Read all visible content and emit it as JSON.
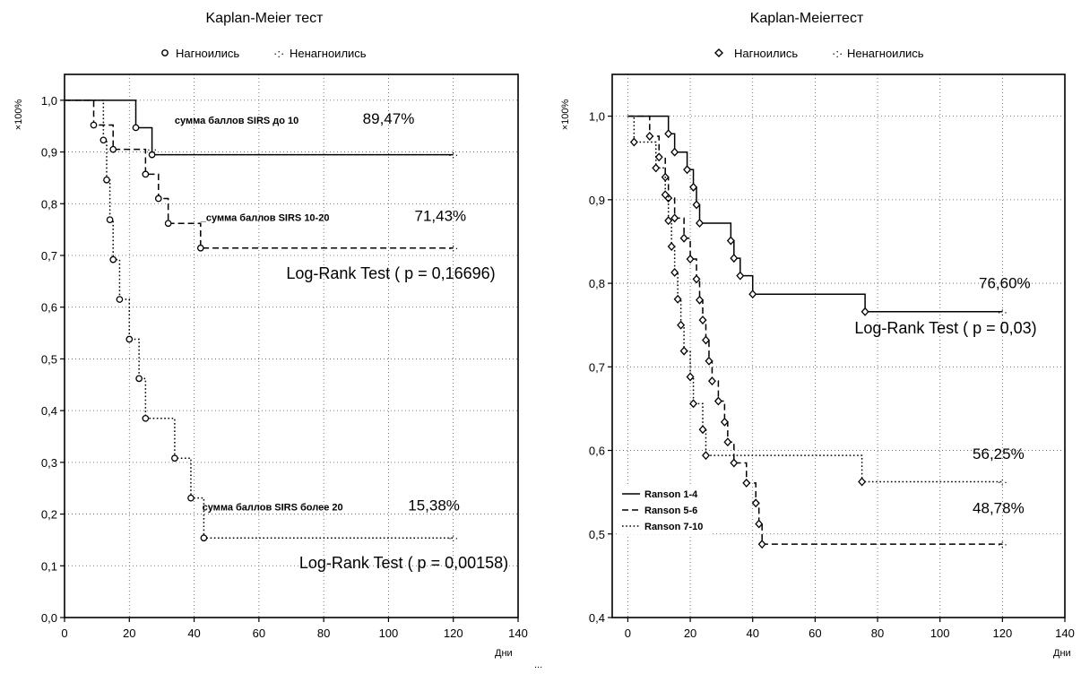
{
  "chart_data": [
    {
      "type": "line",
      "title": "Kaplan-Meier тест",
      "legend": [
        "Нагноились",
        "Ненагноились"
      ],
      "ylabel": "×100%",
      "xlabel": "",
      "bottom_note": "Дни",
      "bottom_mark": "...",
      "xlim": [
        0,
        140
      ],
      "ylim": [
        0,
        1.05
      ],
      "xticks": [
        0,
        20,
        40,
        60,
        80,
        100,
        120,
        140
      ],
      "yticks": [
        0.0,
        0.1,
        0.2,
        0.3,
        0.4,
        0.5,
        0.6,
        0.7,
        0.8,
        0.9,
        1.0
      ],
      "ytick_labels": [
        "0,0",
        "0,1",
        "0,2",
        "0,3",
        "0,4",
        "0,5",
        "0,6",
        "0,7",
        "0,8",
        "0,9",
        "1,0"
      ],
      "grid": true,
      "series": [
        {
          "name": "",
          "style": "solid",
          "steps": [
            [
              0,
              1.0
            ],
            [
              22,
              0.947
            ],
            [
              27,
              0.8947
            ],
            [
              120,
              0.8947
            ]
          ],
          "events": [
            [
              22,
              0.947
            ],
            [
              27,
              0.8947
            ]
          ],
          "censored": [
            [
              120,
              0.8947
            ]
          ]
        },
        {
          "name": "",
          "style": "dashed",
          "steps": [
            [
              0,
              1.0
            ],
            [
              9,
              0.952
            ],
            [
              15,
              0.905
            ],
            [
              25,
              0.857
            ],
            [
              29,
              0.81
            ],
            [
              32,
              0.762
            ],
            [
              42,
              0.7143
            ],
            [
              120,
              0.7143
            ]
          ],
          "events": [
            [
              9,
              0.952
            ],
            [
              15,
              0.905
            ],
            [
              25,
              0.857
            ],
            [
              29,
              0.81
            ],
            [
              32,
              0.762
            ],
            [
              42,
              0.7143
            ]
          ],
          "censored": [
            [
              27,
              0.905
            ],
            [
              120,
              0.7143
            ]
          ]
        },
        {
          "name": "",
          "style": "dotted",
          "steps": [
            [
              0,
              1.0
            ],
            [
              12,
              0.923
            ],
            [
              13,
              0.846
            ],
            [
              14,
              0.769
            ],
            [
              15,
              0.692
            ],
            [
              17,
              0.615
            ],
            [
              20,
              0.538
            ],
            [
              23,
              0.462
            ],
            [
              25,
              0.385
            ],
            [
              34,
              0.308
            ],
            [
              39,
              0.231
            ],
            [
              43,
              0.1538
            ],
            [
              120,
              0.1538
            ]
          ],
          "events": [
            [
              12,
              0.923
            ],
            [
              13,
              0.846
            ],
            [
              14,
              0.769
            ],
            [
              15,
              0.692
            ],
            [
              17,
              0.615
            ],
            [
              20,
              0.538
            ],
            [
              23,
              0.462
            ],
            [
              25,
              0.385
            ],
            [
              34,
              0.308
            ],
            [
              39,
              0.231
            ],
            [
              43,
              0.1538
            ]
          ],
          "censored": [
            [
              120,
              0.1538
            ]
          ]
        }
      ],
      "annotations": [
        {
          "text": "сумма баллов SIRS     до 10",
          "x": 34,
          "y": 0.955,
          "size": "s"
        },
        {
          "text": "89,47%",
          "x": 108,
          "y": 0.955,
          "size": "m",
          "anchor": "end"
        },
        {
          "text": "_сумма  баллов  SIRS   10-20",
          "x": 42,
          "y": 0.767,
          "size": "s"
        },
        {
          "text": "71,43%",
          "x": 124,
          "y": 0.767,
          "size": "m",
          "anchor": "end"
        },
        {
          "text": "Log-Rank Test ( p = 0,16696)",
          "x": 133,
          "y": 0.655,
          "size": "l",
          "anchor": "end"
        },
        {
          "text": "сумма баллов SIRS более 20",
          "x": 42.5,
          "y": 0.207,
          "size": "s"
        },
        {
          "text": "15,38%",
          "x": 122,
          "y": 0.207,
          "size": "m",
          "anchor": "end"
        },
        {
          "text": "Log-Rank Test ( p = 0,00158)",
          "x": 137,
          "y": 0.095,
          "size": "l",
          "anchor": "end"
        }
      ]
    },
    {
      "type": "line",
      "title": "Kaplan-Meierтест",
      "legend": [
        "Нагноились",
        "Ненагноились"
      ],
      "ylabel": "×100%",
      "xlabel": "",
      "bottom_note": "Дни",
      "xlim": [
        -5,
        140
      ],
      "ylim": [
        0.4,
        1.05
      ],
      "xticks": [
        0,
        20,
        40,
        60,
        80,
        100,
        120,
        140
      ],
      "yticks": [
        0.4,
        0.5,
        0.6,
        0.7,
        0.8,
        0.9,
        1.0
      ],
      "ytick_labels": [
        "0,4",
        "0,5",
        "0,6",
        "0,7",
        "0,8",
        "0,9",
        "1,0"
      ],
      "grid": true,
      "series_legend_placement": "bottom-left",
      "series": [
        {
          "name": "Ranson 1-4",
          "style": "solid",
          "steps": [
            [
              0,
              1.0
            ],
            [
              13,
              0.979
            ],
            [
              15,
              0.957
            ],
            [
              19,
              0.936
            ],
            [
              21,
              0.915
            ],
            [
              22,
              0.894
            ],
            [
              23,
              0.872
            ],
            [
              33,
              0.851
            ],
            [
              34,
              0.83
            ],
            [
              36,
              0.809
            ],
            [
              40,
              0.787
            ],
            [
              76,
              0.766
            ],
            [
              120,
              0.766
            ]
          ],
          "events": [
            [
              13,
              0.979
            ],
            [
              15,
              0.957
            ],
            [
              19,
              0.936
            ],
            [
              21,
              0.915
            ],
            [
              22,
              0.894
            ],
            [
              23,
              0.872
            ],
            [
              33,
              0.851
            ],
            [
              34,
              0.83
            ],
            [
              36,
              0.809
            ],
            [
              40,
              0.787
            ],
            [
              76,
              0.766
            ]
          ],
          "censored": [
            [
              120,
              0.766
            ]
          ]
        },
        {
          "name": "Ranson 5-6",
          "style": "dashed",
          "steps": [
            [
              0,
              1.0
            ],
            [
              7,
              0.976
            ],
            [
              10,
              0.951
            ],
            [
              12,
              0.927
            ],
            [
              13,
              0.902
            ],
            [
              15,
              0.878
            ],
            [
              18,
              0.854
            ],
            [
              20,
              0.829
            ],
            [
              22,
              0.805
            ],
            [
              23,
              0.78
            ],
            [
              24,
              0.756
            ],
            [
              25,
              0.732
            ],
            [
              26,
              0.707
            ],
            [
              27,
              0.683
            ],
            [
              29,
              0.659
            ],
            [
              31,
              0.634
            ],
            [
              32,
              0.61
            ],
            [
              34,
              0.585
            ],
            [
              38,
              0.561
            ],
            [
              41,
              0.537
            ],
            [
              42,
              0.512
            ],
            [
              43,
              0.4878
            ],
            [
              120,
              0.4878
            ]
          ],
          "events": [
            [
              7,
              0.976
            ],
            [
              10,
              0.951
            ],
            [
              12,
              0.927
            ],
            [
              13,
              0.902
            ],
            [
              15,
              0.878
            ],
            [
              18,
              0.854
            ],
            [
              20,
              0.829
            ],
            [
              22,
              0.805
            ],
            [
              23,
              0.78
            ],
            [
              24,
              0.756
            ],
            [
              25,
              0.732
            ],
            [
              26,
              0.707
            ],
            [
              27,
              0.683
            ],
            [
              29,
              0.659
            ],
            [
              31,
              0.634
            ],
            [
              32,
              0.61
            ],
            [
              34,
              0.585
            ],
            [
              38,
              0.561
            ],
            [
              41,
              0.537
            ],
            [
              42,
              0.512
            ],
            [
              43,
              0.4878
            ]
          ],
          "censored": [
            [
              120,
              0.4878
            ]
          ]
        },
        {
          "name": "Ranson 7-10",
          "style": "dotted",
          "steps": [
            [
              0,
              1.0
            ],
            [
              2,
              0.969
            ],
            [
              9,
              0.938
            ],
            [
              12,
              0.906
            ],
            [
              13,
              0.875
            ],
            [
              14,
              0.844
            ],
            [
              15,
              0.813
            ],
            [
              16,
              0.781
            ],
            [
              17,
              0.75
            ],
            [
              18,
              0.719
            ],
            [
              20,
              0.688
            ],
            [
              21,
              0.656
            ],
            [
              24,
              0.625
            ],
            [
              25,
              0.594
            ],
            [
              75,
              0.5625
            ],
            [
              120,
              0.5625
            ]
          ],
          "events": [
            [
              2,
              0.969
            ],
            [
              9,
              0.938
            ],
            [
              12,
              0.906
            ],
            [
              13,
              0.875
            ],
            [
              14,
              0.844
            ],
            [
              15,
              0.813
            ],
            [
              16,
              0.781
            ],
            [
              17,
              0.75
            ],
            [
              18,
              0.719
            ],
            [
              20,
              0.688
            ],
            [
              21,
              0.656
            ],
            [
              24,
              0.625
            ],
            [
              25,
              0.594
            ],
            [
              75,
              0.5625
            ]
          ],
          "censored": [
            [
              120,
              0.5625
            ]
          ]
        }
      ],
      "annotations": [
        {
          "text": "76,60%",
          "x": 129,
          "y": 0.794,
          "size": "m",
          "anchor": "end"
        },
        {
          "text": "Log-Rank Test ( p = 0,03)",
          "x": 131,
          "y": 0.74,
          "size": "l",
          "anchor": "end"
        },
        {
          "text": "56,25%",
          "x": 127,
          "y": 0.59,
          "size": "m",
          "anchor": "end"
        },
        {
          "text": "48,78%",
          "x": 127,
          "y": 0.525,
          "size": "m",
          "anchor": "end"
        }
      ]
    }
  ]
}
